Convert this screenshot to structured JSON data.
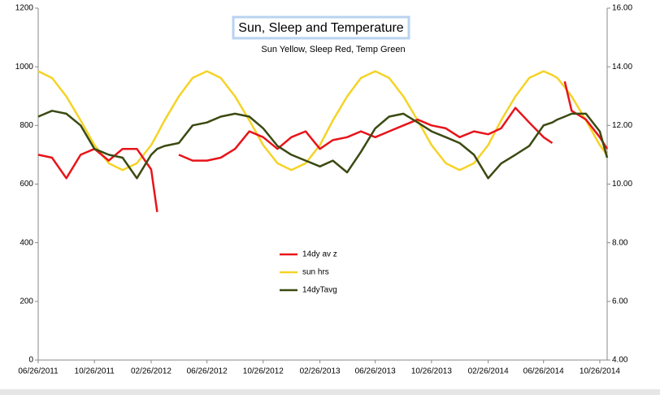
{
  "chart_data": {
    "type": "line",
    "title": "Sun, Sleep and Temperature",
    "subtitle": "Sun Yellow, Sleep Red, Temp Green",
    "x": [
      "06/26/2011",
      "07/26/2011",
      "08/26/2011",
      "09/26/2011",
      "10/26/2011",
      "11/26/2011",
      "12/26/2011",
      "01/26/2012",
      "02/26/2012",
      "03/10/2012",
      "03/26/2012",
      "04/26/2012",
      "05/26/2012",
      "06/26/2012",
      "07/26/2012",
      "08/26/2012",
      "09/26/2012",
      "10/26/2012",
      "11/26/2012",
      "12/26/2012",
      "01/26/2013",
      "02/26/2013",
      "03/26/2013",
      "04/26/2013",
      "05/26/2013",
      "06/26/2013",
      "07/26/2013",
      "08/26/2013",
      "09/26/2013",
      "10/26/2013",
      "11/26/2013",
      "12/26/2013",
      "01/26/2014",
      "02/26/2014",
      "03/26/2014",
      "04/26/2014",
      "05/26/2014",
      "06/26/2014",
      "07/15/2014",
      "07/26/2014",
      "08/11/2014",
      "08/26/2014",
      "09/26/2014",
      "10/26/2014",
      "11/11/2014"
    ],
    "series": [
      {
        "name": "14dy av z",
        "color": "#e8141a",
        "values": [
          700,
          690,
          620,
          700,
          720,
          680,
          720,
          720,
          650,
          505,
          null,
          700,
          680,
          680,
          690,
          720,
          780,
          760,
          720,
          760,
          780,
          720,
          750,
          760,
          780,
          760,
          780,
          800,
          820,
          800,
          790,
          760,
          780,
          770,
          790,
          860,
          810,
          760,
          740,
          null,
          950,
          850,
          820,
          760,
          720
        ]
      },
      {
        "name": "sun hrs",
        "color": "#f5d327",
        "axis": "y2",
        "values": [
          13.85,
          13.62,
          12.99,
          12.17,
          11.33,
          10.71,
          10.48,
          10.71,
          11.33,
          11.7,
          12.17,
          12.99,
          13.62,
          13.85,
          13.62,
          12.99,
          12.17,
          11.33,
          10.71,
          10.48,
          10.71,
          11.33,
          12.17,
          12.99,
          13.62,
          13.85,
          13.62,
          12.99,
          12.17,
          11.33,
          10.71,
          10.48,
          10.71,
          11.33,
          12.17,
          12.99,
          13.62,
          13.85,
          13.72,
          13.62,
          13.3,
          12.99,
          12.17,
          11.33,
          10.98
        ]
      },
      {
        "name": "14dyTavg",
        "color": "#3b4a12",
        "values": [
          830,
          850,
          840,
          800,
          720,
          700,
          690,
          620,
          700,
          720,
          730,
          740,
          800,
          810,
          830,
          840,
          830,
          790,
          730,
          700,
          680,
          660,
          680,
          640,
          710,
          790,
          830,
          840,
          810,
          780,
          760,
          740,
          700,
          620,
          670,
          700,
          730,
          800,
          810,
          820,
          830,
          840,
          840,
          780,
          690
        ]
      }
    ],
    "xlim": [
      "06/26/2011",
      "11/11/2014"
    ],
    "xticks": [
      "06/26/2011",
      "10/26/2011",
      "02/26/2012",
      "06/26/2012",
      "10/26/2012",
      "02/26/2013",
      "06/26/2013",
      "10/26/2013",
      "02/26/2014",
      "06/26/2014",
      "10/26/2014"
    ],
    "ylim": [
      0,
      1200
    ],
    "yticks": [
      0,
      200,
      400,
      600,
      800,
      1000,
      1200
    ],
    "y2lim": [
      4,
      16
    ],
    "y2ticks": [
      {
        "value": 4,
        "label": "4.00"
      },
      {
        "value": 6,
        "label": "6.00"
      },
      {
        "value": 8,
        "label": "8.00"
      },
      {
        "value": 10,
        "label": "10.00"
      },
      {
        "value": 12,
        "label": "12.00"
      },
      {
        "value": 14,
        "label": "14.00"
      },
      {
        "value": 16,
        "label": "16.00"
      }
    ]
  }
}
